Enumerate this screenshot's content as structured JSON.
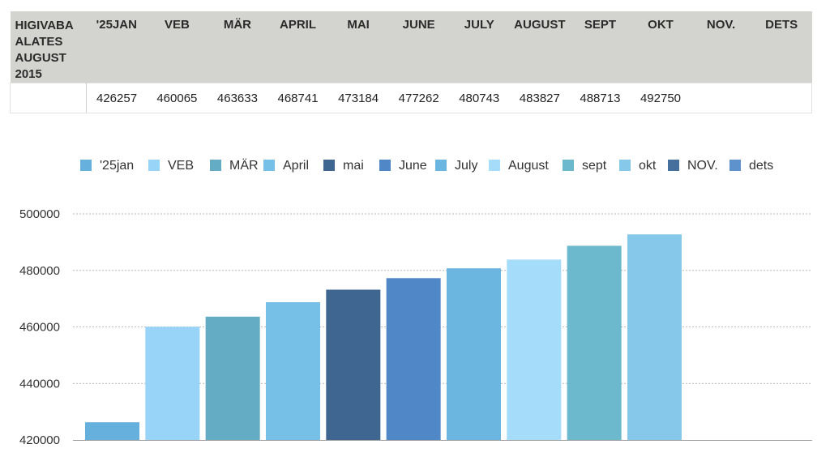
{
  "table": {
    "row_header": "HIGIVABA ALATES AUGUST 2015",
    "months": [
      "'25JAN",
      "VEB",
      "MÄR",
      "APRIL",
      "MAI",
      "JUNE",
      "JULY",
      "AUGUST",
      "SEPT",
      "OKT",
      "NOV.",
      "DETS"
    ],
    "values": [
      "426257",
      "460065",
      "463633",
      "468741",
      "473184",
      "477262",
      "480743",
      "483827",
      "488713",
      "492750",
      "",
      ""
    ]
  },
  "chart_data": {
    "type": "bar",
    "categories": [
      "'25jan",
      "VEB",
      "MÄR",
      "April",
      "mai",
      "June",
      "July",
      "August",
      "sept",
      "okt",
      "NOV.",
      "dets"
    ],
    "values": [
      426257,
      460065,
      463633,
      468741,
      473184,
      477262,
      480743,
      483827,
      488713,
      492750,
      null,
      null
    ],
    "colors": [
      "#65b0dc",
      "#97d4f8",
      "#64acc4",
      "#76c0e8",
      "#3e6690",
      "#5087c6",
      "#6ab6e0",
      "#a5dcf9",
      "#6cb8cc",
      "#86c8ea",
      "#45709e",
      "#5d92cc"
    ],
    "ylim": [
      420000,
      500000
    ],
    "yticks": [
      420000,
      440000,
      460000,
      480000,
      500000
    ],
    "grid": true,
    "legend_position": "top"
  }
}
